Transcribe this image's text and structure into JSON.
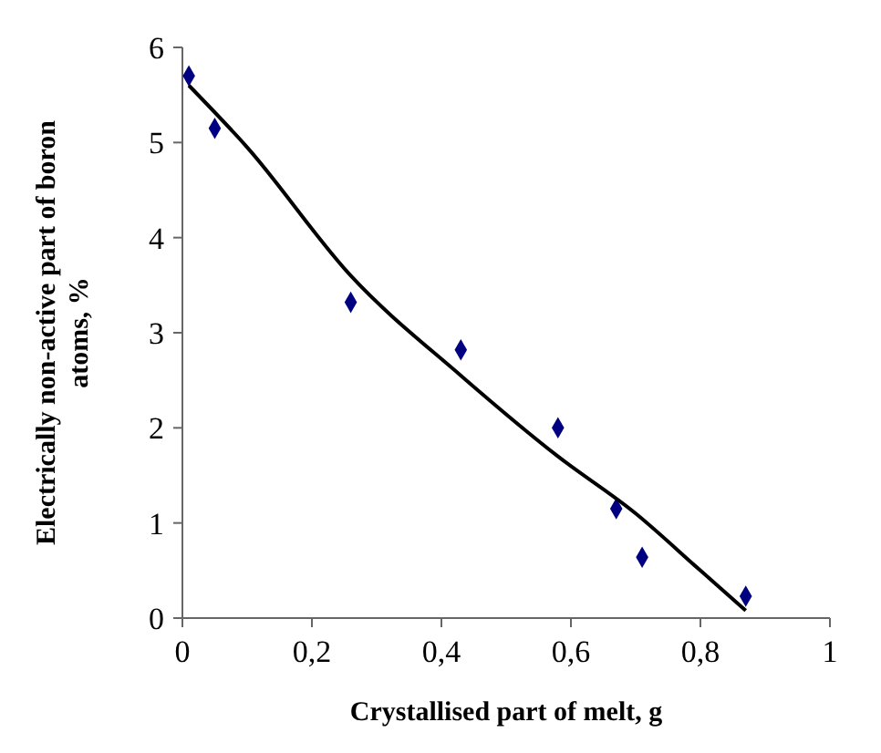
{
  "chart_data": {
    "type": "scatter",
    "xlabel": "Crystallised part of melt, g",
    "ylabel": "Electrically non-active part of boron atoms, %",
    "xlim": [
      0,
      1
    ],
    "ylim": [
      0,
      6
    ],
    "xticks": [
      0,
      {
        "value": 0.2,
        "label": "0,2"
      },
      {
        "value": 0.4,
        "label": "0,4"
      },
      {
        "value": 0.6,
        "label": "0,6"
      },
      {
        "value": 0.8,
        "label": "0,8"
      },
      1
    ],
    "yticks": [
      0,
      1,
      2,
      3,
      4,
      5,
      6
    ],
    "grid": false,
    "series": [
      {
        "marker": "diamond",
        "color": "#000080",
        "x": [
          0.01,
          0.05,
          0.26,
          0.43,
          0.58,
          0.67,
          0.71,
          0.87
        ],
        "values": [
          5.7,
          5.15,
          3.32,
          2.82,
          2.0,
          1.15,
          0.64,
          0.23
        ]
      },
      {
        "type": "line",
        "color": "#000000",
        "x": [
          0.01,
          0.1,
          0.26,
          0.43,
          0.58,
          0.7,
          0.8,
          0.87
        ],
        "values": [
          5.6,
          4.95,
          3.6,
          2.55,
          1.7,
          1.1,
          0.5,
          0.08
        ]
      }
    ]
  }
}
